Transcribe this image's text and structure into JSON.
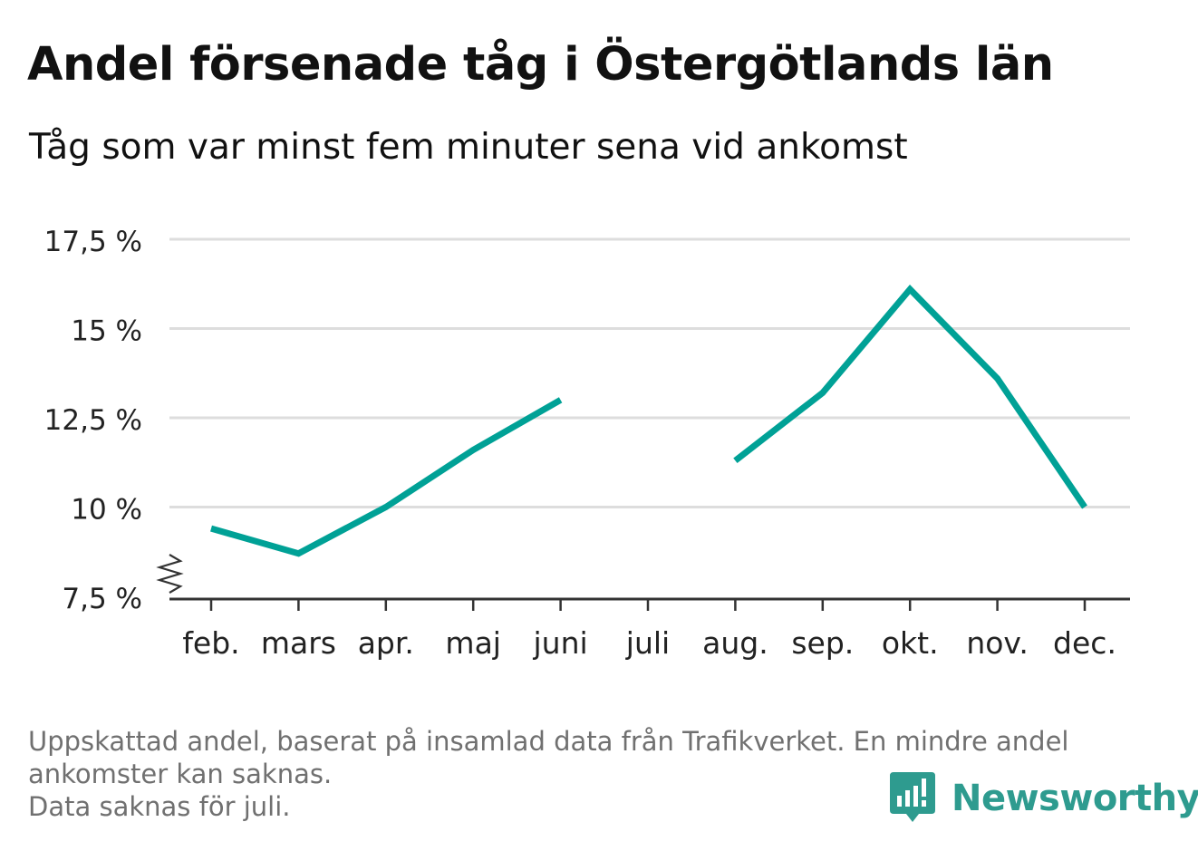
{
  "header": {
    "title": "Andel försenade tåg i Östergötlands län",
    "subtitle": "Tåg som var minst fem minuter sena vid ankomst"
  },
  "chart_data": {
    "type": "line",
    "title": "Andel försenade tåg i Östergötlands län",
    "subtitle": "Tåg som var minst fem minuter sena vid ankomst",
    "xlabel": "",
    "ylabel": "",
    "categories": [
      "feb.",
      "mars",
      "apr.",
      "maj",
      "juni",
      "juli",
      "aug.",
      "sep.",
      "okt.",
      "nov.",
      "dec."
    ],
    "series": [
      {
        "values": [
          9.4,
          8.7,
          10.0,
          11.6,
          13.0,
          null,
          11.3,
          13.2,
          16.1,
          13.6,
          10.0
        ]
      }
    ],
    "ylim": [
      7.5,
      17.5
    ],
    "yticks": [
      7.5,
      10,
      12.5,
      15,
      17.5
    ],
    "ytick_labels": [
      "7,5 %",
      "10 %",
      "12,5 %",
      "15 %",
      "17,5 %"
    ],
    "grid": true,
    "axis_break": true,
    "line_color": "#00a196",
    "grid_color": "#dddddd",
    "axis_color": "#333333"
  },
  "footer": {
    "note_lines": [
      "Uppskattad andel, baserat på insamlad data från Trafikverket. En mindre andel",
      "ankomster kan saknas.",
      "Data saknas för juli."
    ],
    "brand": "Newsworthy",
    "brand_icon": "bar-chart-speech-bubble-icon",
    "brand_color": "#2e9b8f"
  }
}
